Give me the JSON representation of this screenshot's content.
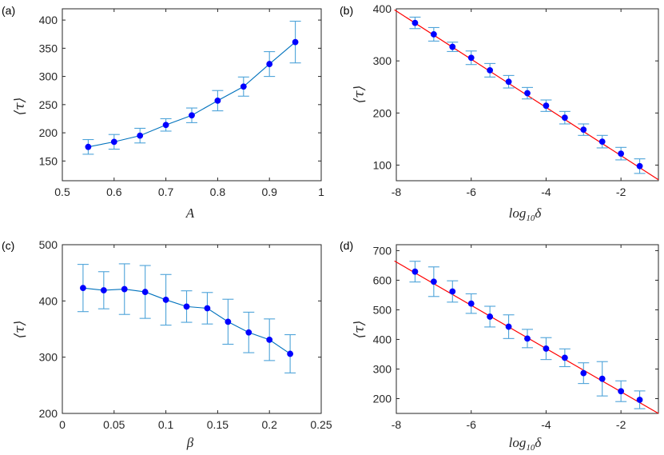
{
  "colors": {
    "series": "#0072BD",
    "errorbar": "#4DA3D9",
    "marker": "#0000FF",
    "fit": "#FF0000",
    "axes": "#262626"
  },
  "chart_data": [
    {
      "panel": "(a)",
      "type": "line",
      "xlabel": "A",
      "ylabel": "⟨τ⟩",
      "xlim": [
        0.5,
        1
      ],
      "ylim": [
        115,
        420
      ],
      "xticks": [
        "0.5",
        "0.6",
        "0.7",
        "0.8",
        "0.9",
        "1"
      ],
      "yticks": [
        "150",
        "200",
        "250",
        "300",
        "350",
        "400"
      ],
      "xtick_values": [
        0.5,
        0.6,
        0.7,
        0.8,
        0.9,
        1
      ],
      "ytick_values": [
        150,
        200,
        250,
        300,
        350,
        400
      ],
      "x": [
        0.55,
        0.6,
        0.65,
        0.7,
        0.75,
        0.8,
        0.85,
        0.9,
        0.95
      ],
      "y": [
        175,
        184,
        195,
        214,
        231,
        257,
        282,
        322,
        361
      ],
      "err": [
        13,
        13,
        13,
        11,
        13,
        18,
        17,
        22,
        37
      ],
      "connect": true,
      "fit": null
    },
    {
      "panel": "(b)",
      "type": "line",
      "xlabel": "log10δ",
      "xlabel_base": "log",
      "xlabel_sub": "10",
      "xlabel_sym": "δ",
      "ylabel": "⟨τ⟩",
      "xlim": [
        -8,
        -1
      ],
      "ylim": [
        70,
        400
      ],
      "xticks": [
        "-8",
        "-6",
        "-4",
        "-2"
      ],
      "yticks": [
        "100",
        "200",
        "300",
        "400"
      ],
      "xtick_values": [
        -8,
        -6,
        -4,
        -2
      ],
      "ytick_values": [
        100,
        200,
        300,
        400
      ],
      "x": [
        -7.5,
        -7,
        -6.5,
        -6,
        -5.5,
        -5,
        -4.5,
        -4,
        -3.5,
        -3,
        -2.5,
        -2,
        -1.5
      ],
      "y": [
        373,
        351,
        327,
        306,
        282,
        260,
        238,
        214,
        191,
        168,
        145,
        122,
        98
      ],
      "err": [
        11,
        13,
        9,
        13,
        13,
        12,
        11,
        11,
        12,
        11,
        12,
        12,
        14
      ],
      "connect": false,
      "fit": [
        [
          -8.05,
          398
        ],
        [
          -1,
          72
        ]
      ]
    },
    {
      "panel": "(c)",
      "type": "line",
      "xlabel": "β",
      "ylabel": "⟨τ⟩",
      "xlim": [
        0,
        0.25
      ],
      "ylim": [
        200,
        500
      ],
      "xticks": [
        "0",
        "0.05",
        "0.1",
        "0.15",
        "0.2",
        "0.25"
      ],
      "yticks": [
        "200",
        "300",
        "400",
        "500"
      ],
      "xtick_values": [
        0,
        0.05,
        0.1,
        0.15,
        0.2,
        0.25
      ],
      "ytick_values": [
        200,
        300,
        400,
        500
      ],
      "x": [
        0.02,
        0.04,
        0.06,
        0.08,
        0.1,
        0.12,
        0.14,
        0.16,
        0.18,
        0.2,
        0.22
      ],
      "y": [
        423,
        419,
        421,
        416,
        402,
        390,
        387,
        363,
        344,
        331,
        306
      ],
      "err": [
        42,
        33,
        45,
        47,
        45,
        28,
        28,
        40,
        36,
        37,
        34
      ],
      "connect": true,
      "fit": null
    },
    {
      "panel": "(d)",
      "type": "line",
      "xlabel": "log10δ",
      "xlabel_base": "log",
      "xlabel_sub": "10",
      "xlabel_sym": "δ",
      "ylabel": "⟨τ⟩",
      "xlim": [
        -8,
        -1
      ],
      "ylim": [
        150,
        720
      ],
      "xticks": [
        "-8",
        "-6",
        "-4",
        "-2"
      ],
      "yticks": [
        "200",
        "300",
        "400",
        "500",
        "600",
        "700"
      ],
      "xtick_values": [
        -8,
        -6,
        -4,
        -2
      ],
      "ytick_values": [
        200,
        300,
        400,
        500,
        600,
        700
      ],
      "x": [
        -7.5,
        -7,
        -6.5,
        -6,
        -5.5,
        -5,
        -4.5,
        -4,
        -3.5,
        -3,
        -2.5,
        -2,
        -1.5
      ],
      "y": [
        629,
        595,
        562,
        521,
        477,
        443,
        403,
        369,
        338,
        286,
        267,
        225,
        196
      ],
      "err": [
        35,
        50,
        36,
        33,
        35,
        40,
        31,
        37,
        30,
        35,
        58,
        35,
        30
      ],
      "connect": false,
      "fit": [
        [
          -8.05,
          665
        ],
        [
          -1,
          150
        ]
      ]
    }
  ]
}
